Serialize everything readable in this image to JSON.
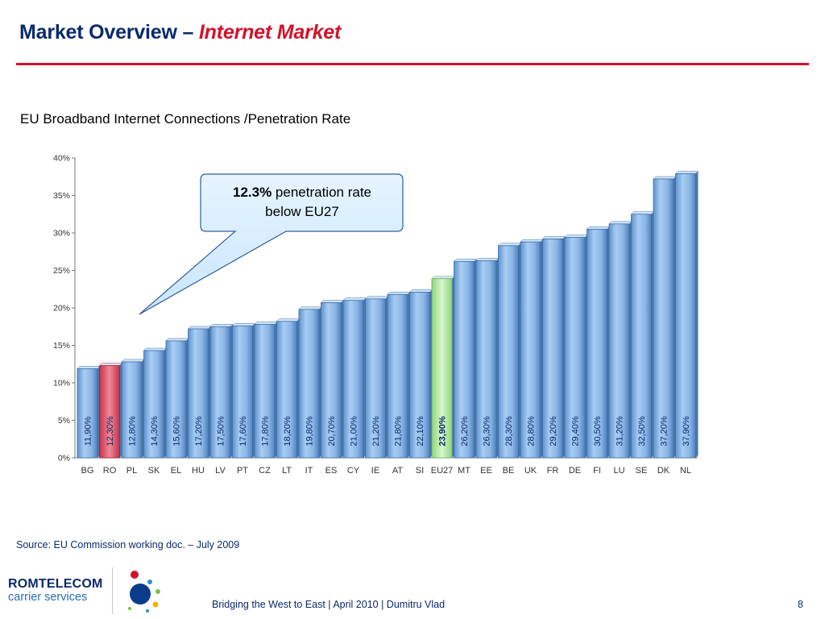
{
  "header": {
    "title_main": "Market Overview – ",
    "title_accent": "Internet Market"
  },
  "subtitle": "EU Broadband Internet Connections /Penetration Rate",
  "callout": {
    "bold": "12.3%",
    "line1_rest": " penetration rate",
    "line2": "below EU27"
  },
  "source": "Source: EU Commission working doc. – July 2009",
  "logo": {
    "line1": "ROMTELECOM",
    "line2": "carrier services"
  },
  "footer": {
    "text": "Bridging the West to East | April 2010 | Dumitru Vlad",
    "page": "8"
  },
  "colors": {
    "bar": "#8cb8e8",
    "highlight_ro": "#e05a6e",
    "highlight_eu27": "#b9f0a8",
    "title": "#0b2a6b",
    "accent": "#d4122a"
  },
  "chart_data": {
    "type": "bar",
    "categories": [
      "BG",
      "RO",
      "PL",
      "SK",
      "EL",
      "HU",
      "LV",
      "PT",
      "CZ",
      "LT",
      "IT",
      "ES",
      "CY",
      "IE",
      "AT",
      "SI",
      "EU27",
      "MT",
      "EE",
      "BE",
      "UK",
      "FR",
      "DE",
      "FI",
      "LU",
      "SE",
      "DK",
      "NL"
    ],
    "values": [
      11.9,
      12.3,
      12.8,
      14.3,
      15.6,
      17.2,
      17.5,
      17.6,
      17.8,
      18.2,
      19.8,
      20.7,
      21.0,
      21.2,
      21.8,
      22.1,
      23.9,
      26.2,
      26.3,
      28.3,
      28.8,
      29.2,
      29.4,
      30.5,
      31.2,
      32.5,
      37.2,
      37.9
    ],
    "value_labels": [
      "11,90%",
      "12,30%",
      "12,80%",
      "14,30%",
      "15,60%",
      "17,20%",
      "17,50%",
      "17,60%",
      "17,80%",
      "18,20%",
      "19,80%",
      "20,70%",
      "21,00%",
      "21,20%",
      "21,80%",
      "22,10%",
      "23,90%",
      "26,20%",
      "26,30%",
      "28,30%",
      "28,80%",
      "29,20%",
      "29,40%",
      "30,50%",
      "31,20%",
      "32,50%",
      "37,20%",
      "37,90%"
    ],
    "highlights": {
      "RO": "#e05a6e",
      "EU27": "#b9f0a8"
    },
    "yticks": [
      "0%",
      "5%",
      "10%",
      "15%",
      "20%",
      "25%",
      "30%",
      "35%",
      "40%"
    ],
    "ylim": [
      0,
      40
    ],
    "grid": false
  }
}
